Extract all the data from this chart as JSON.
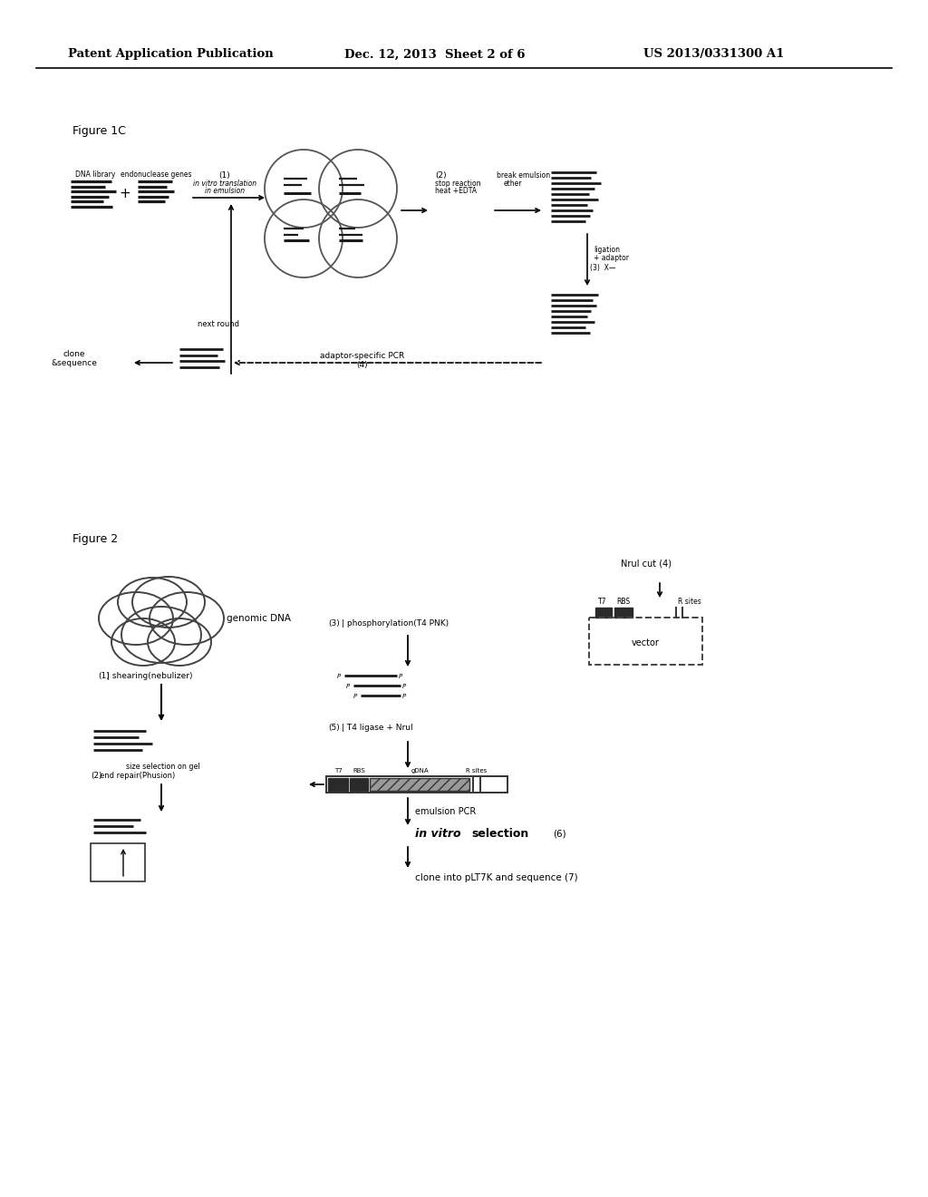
{
  "bg_color": "#ffffff",
  "header_text": "Patent Application Publication",
  "header_date": "Dec. 12, 2013  Sheet 2 of 6",
  "header_patent": "US 2013/0331300 A1"
}
